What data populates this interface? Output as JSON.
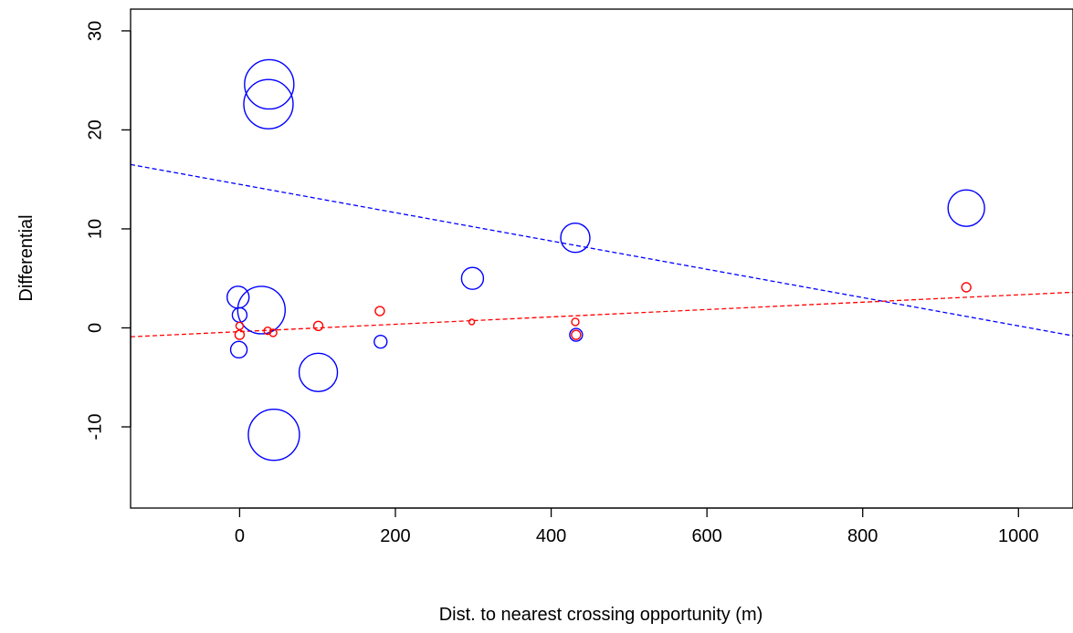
{
  "chart_data": {
    "type": "scatter",
    "xlabel": "Dist. to nearest crossing opportunity (m)",
    "ylabel": "Differential",
    "xlim": [
      -140,
      1070
    ],
    "ylim": [
      -18.2,
      32.2
    ],
    "xticks": [
      0,
      200,
      400,
      600,
      800,
      1000
    ],
    "yticks": [
      -10,
      0,
      10,
      20,
      30
    ],
    "grid": false,
    "series": [
      {
        "color": "#0000ff",
        "marker": "open-circle-sized",
        "points": [
          {
            "x": 38,
            "y": 24.6,
            "size": 27
          },
          {
            "x": 37,
            "y": 22.6,
            "size": 27
          },
          {
            "x": 933,
            "y": 12.1,
            "size": 20
          },
          {
            "x": 431,
            "y": 9.1,
            "size": 16
          },
          {
            "x": 299,
            "y": 5.0,
            "size": 12
          },
          {
            "x": -2,
            "y": 3.1,
            "size": 12
          },
          {
            "x": 28,
            "y": 1.8,
            "size": 26
          },
          {
            "x": 0,
            "y": 1.3,
            "size": 8
          },
          {
            "x": -1,
            "y": -2.2,
            "size": 9
          },
          {
            "x": 101,
            "y": -4.5,
            "size": 21
          },
          {
            "x": 181,
            "y": -1.4,
            "size": 7
          },
          {
            "x": 432,
            "y": -0.7,
            "size": 7
          },
          {
            "x": 44,
            "y": -10.8,
            "size": 28
          }
        ]
      },
      {
        "color": "#ff0000",
        "marker": "open-circle-sized",
        "points": [
          {
            "x": 933,
            "y": 4.1,
            "size": 5
          },
          {
            "x": 180,
            "y": 1.7,
            "size": 5
          },
          {
            "x": 101,
            "y": 0.2,
            "size": 5
          },
          {
            "x": 298,
            "y": 0.6,
            "size": 3
          },
          {
            "x": 431,
            "y": 0.6,
            "size": 4
          },
          {
            "x": 432,
            "y": -0.7,
            "size": 5
          },
          {
            "x": 0,
            "y": 0.2,
            "size": 4
          },
          {
            "x": 0,
            "y": -0.7,
            "size": 5
          },
          {
            "x": 36,
            "y": -0.3,
            "size": 4
          },
          {
            "x": 43,
            "y": -0.5,
            "size": 4
          }
        ]
      }
    ],
    "trendlines": [
      {
        "color": "#0000ff",
        "style": "dashed",
        "x": [
          -140,
          1070
        ],
        "y": [
          16.5,
          -0.8
        ]
      },
      {
        "color": "#ff0000",
        "style": "dashed",
        "x": [
          -140,
          1070
        ],
        "y": [
          -0.9,
          3.6
        ]
      }
    ]
  }
}
